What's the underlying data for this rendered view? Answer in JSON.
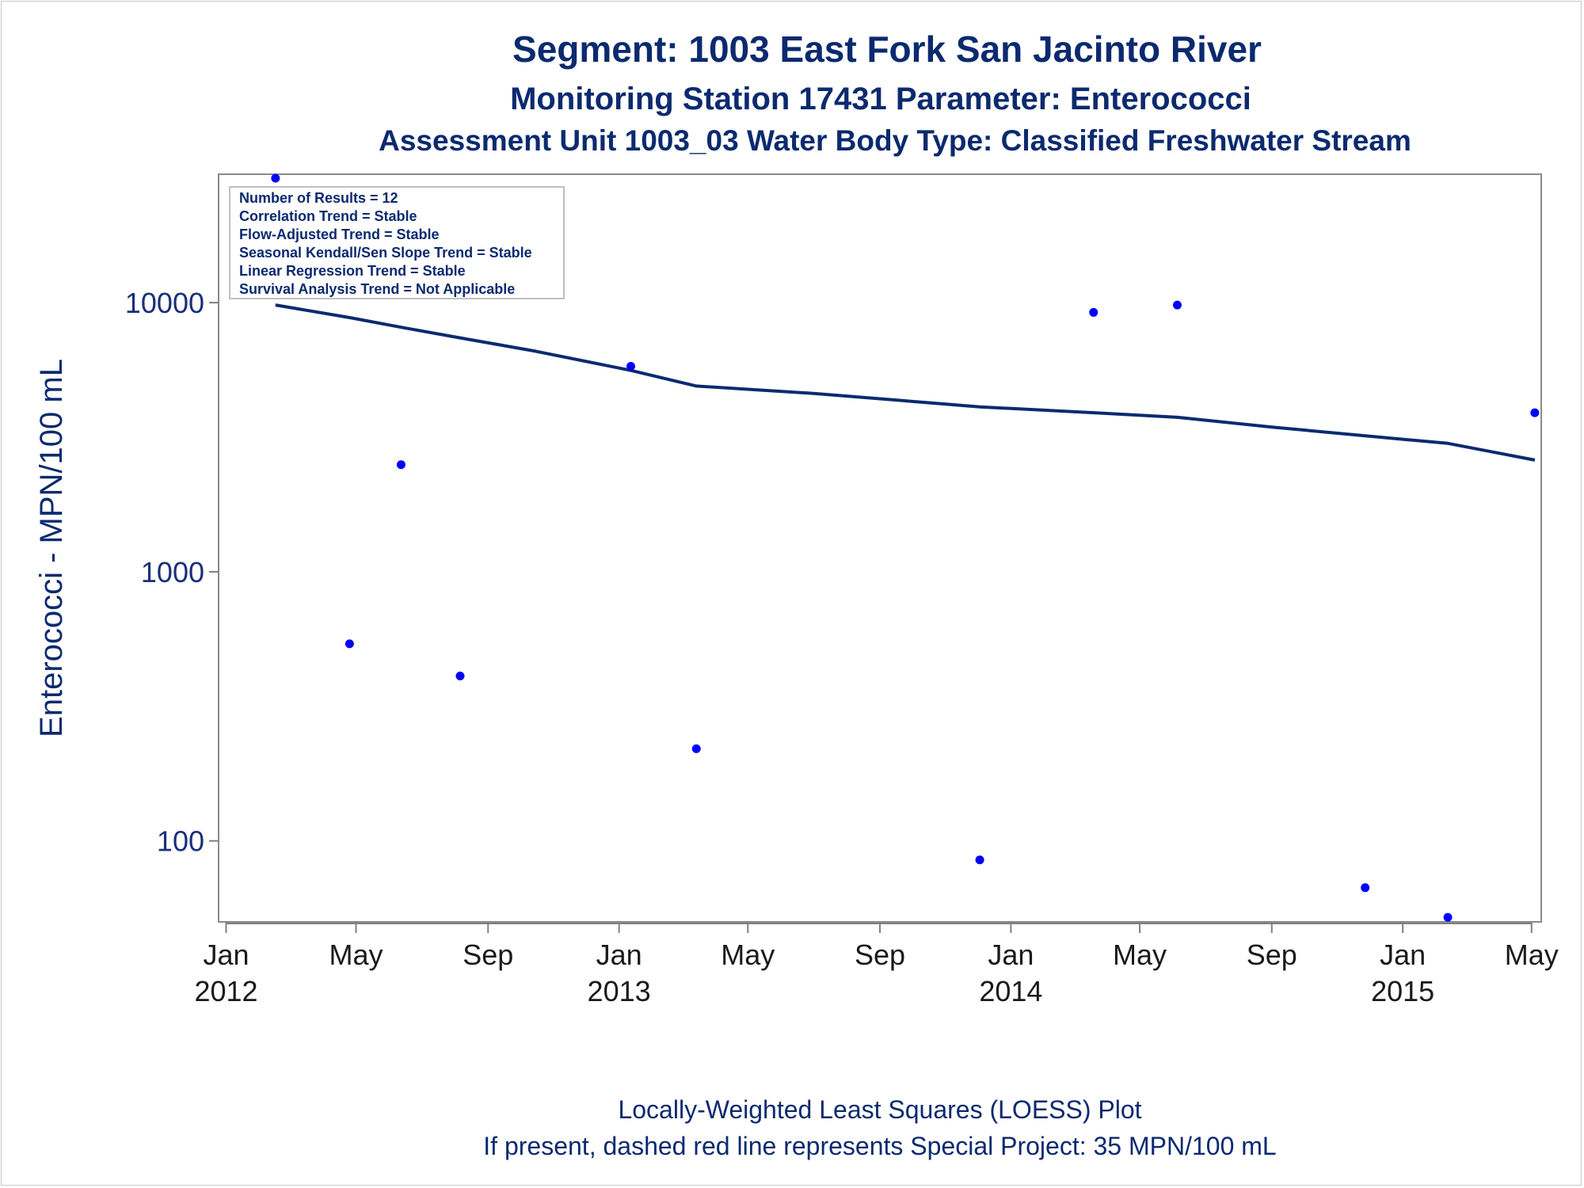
{
  "titles": {
    "line1": "Segment: 1003  East Fork San Jacinto River",
    "line2": "Monitoring Station 17431 Parameter: Enterococci",
    "line3": "Assessment Unit 1003_03   Water Body Type: Classified Freshwater Stream"
  },
  "footnotes": {
    "line1": "Locally-Weighted Least Squares (LOESS) Plot",
    "line2": "If present, dashed red line represents Special Project: 35 MPN/100 mL"
  },
  "inset": [
    "Number of Results = 12",
    "Correlation Trend = Stable",
    "Flow-Adjusted Trend = Stable",
    "Seasonal Kendall/Sen Slope Trend = Stable",
    "Linear Regression Trend = Stable",
    "Survival Analysis Trend = Not Applicable"
  ],
  "colors": {
    "points": "#0000ff",
    "loess": "#0b2a6f",
    "text": "#0b2a6f",
    "axis": "#808080"
  },
  "chart_data": {
    "type": "scatter",
    "ylabel": "Enterococci - MPN/100 mL",
    "yscale": "log",
    "ylim": [
      50,
      30000
    ],
    "xlim": [
      "2011-12-25",
      "2015-05-10"
    ],
    "yticks": [
      100,
      1000,
      10000
    ],
    "xticks": [
      {
        "date": "2012-01-01",
        "label": "Jan",
        "year": "2012"
      },
      {
        "date": "2012-05-01",
        "label": "May",
        "year": ""
      },
      {
        "date": "2012-09-01",
        "label": "Sep",
        "year": ""
      },
      {
        "date": "2013-01-01",
        "label": "Jan",
        "year": "2013"
      },
      {
        "date": "2013-05-01",
        "label": "May",
        "year": ""
      },
      {
        "date": "2013-09-01",
        "label": "Sep",
        "year": ""
      },
      {
        "date": "2014-01-01",
        "label": "Jan",
        "year": "2014"
      },
      {
        "date": "2014-05-01",
        "label": "May",
        "year": ""
      },
      {
        "date": "2014-09-01",
        "label": "Sep",
        "year": ""
      },
      {
        "date": "2015-01-01",
        "label": "Jan",
        "year": "2015"
      },
      {
        "date": "2015-05-01",
        "label": "May",
        "year": ""
      }
    ],
    "points": [
      {
        "x": "2012-02-16",
        "y": 29000
      },
      {
        "x": "2012-04-25",
        "y": 540
      },
      {
        "x": "2012-06-12",
        "y": 2500
      },
      {
        "x": "2012-08-06",
        "y": 410
      },
      {
        "x": "2013-01-12",
        "y": 5800
      },
      {
        "x": "2013-03-14",
        "y": 220
      },
      {
        "x": "2013-12-03",
        "y": 85
      },
      {
        "x": "2014-03-19",
        "y": 9200
      },
      {
        "x": "2014-06-05",
        "y": 9800
      },
      {
        "x": "2014-11-27",
        "y": 67
      },
      {
        "x": "2015-02-12",
        "y": 52
      },
      {
        "x": "2015-05-04",
        "y": 3900
      }
    ],
    "loess": [
      {
        "x": "2012-02-16",
        "y": 9800
      },
      {
        "x": "2012-04-25",
        "y": 8800
      },
      {
        "x": "2012-06-12",
        "y": 8100
      },
      {
        "x": "2012-08-06",
        "y": 7400
      },
      {
        "x": "2012-10-15",
        "y": 6600
      },
      {
        "x": "2013-01-12",
        "y": 5600
      },
      {
        "x": "2013-03-14",
        "y": 4900
      },
      {
        "x": "2013-07-01",
        "y": 4600
      },
      {
        "x": "2013-12-03",
        "y": 4100
      },
      {
        "x": "2014-03-19",
        "y": 3900
      },
      {
        "x": "2014-06-05",
        "y": 3750
      },
      {
        "x": "2014-09-01",
        "y": 3450
      },
      {
        "x": "2014-11-27",
        "y": 3200
      },
      {
        "x": "2015-02-12",
        "y": 3000
      },
      {
        "x": "2015-05-04",
        "y": 2600
      }
    ]
  }
}
